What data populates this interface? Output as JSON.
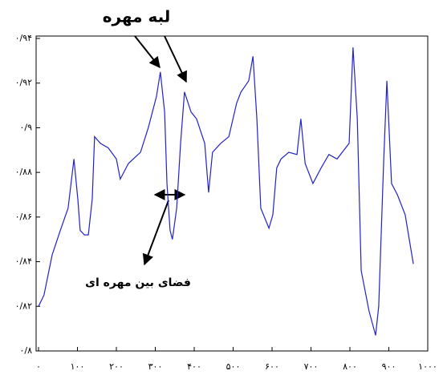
{
  "chart_data": {
    "type": "line",
    "annotations": [
      "لبه مهره",
      "فضای بین مهره ای"
    ],
    "xlim": [
      0,
      1000
    ],
    "xticks": [
      {
        "value": 0,
        "label": "۰"
      },
      {
        "value": 100,
        "label": "۱۰۰"
      },
      {
        "value": 200,
        "label": "۲۰۰"
      },
      {
        "value": 300,
        "label": "۳۰۰"
      },
      {
        "value": 400,
        "label": "۴۰۰"
      },
      {
        "value": 500,
        "label": "۵۰۰"
      },
      {
        "value": 600,
        "label": "۶۰۰"
      },
      {
        "value": 700,
        "label": "۷۰۰"
      },
      {
        "value": 800,
        "label": "۸۰۰"
      },
      {
        "value": 900,
        "label": "۹۰۰"
      },
      {
        "value": 1000,
        "label": "۱۰۰۰"
      }
    ],
    "ylim": [
      0.8,
      0.94
    ],
    "yticks": [
      {
        "value": 0.8,
        "label": "۰/۸"
      },
      {
        "value": 0.82,
        "label": "۰/۸۲"
      },
      {
        "value": 0.84,
        "label": "۰/۸۴"
      },
      {
        "value": 0.86,
        "label": "۰/۸۶"
      },
      {
        "value": 0.88,
        "label": "۰/۸۸"
      },
      {
        "value": 0.9,
        "label": "۰/۹"
      },
      {
        "value": 0.92,
        "label": "۰/۹۲"
      },
      {
        "value": 0.94,
        "label": "۰/۹۴"
      }
    ],
    "series": [
      {
        "color": "#2222cc",
        "x": [
          0,
          14,
          35,
          56,
          76,
          91,
          101,
          107,
          118,
          128,
          138,
          144,
          159,
          179,
          200,
          210,
          231,
          262,
          282,
          303,
          313,
          324,
          330,
          338,
          344,
          355,
          365,
          375,
          392,
          406,
          427,
          437,
          447,
          468,
          489,
          509,
          520,
          540,
          551,
          561,
          571,
          592,
          602,
          612,
          623,
          643,
          664,
          674,
          685,
          705,
          726,
          746,
          767,
          798,
          808,
          819,
          829,
          849,
          866,
          874,
          887,
          895,
          907,
          922,
          942,
          963
        ],
        "values": [
          0.82,
          0.825,
          0.843,
          0.854,
          0.864,
          0.886,
          0.868,
          0.854,
          0.852,
          0.852,
          0.868,
          0.896,
          0.893,
          0.891,
          0.886,
          0.877,
          0.884,
          0.889,
          0.9,
          0.914,
          0.925,
          0.907,
          0.875,
          0.854,
          0.85,
          0.864,
          0.893,
          0.916,
          0.907,
          0.904,
          0.893,
          0.871,
          0.889,
          0.893,
          0.896,
          0.911,
          0.916,
          0.921,
          0.932,
          0.904,
          0.864,
          0.855,
          0.861,
          0.882,
          0.886,
          0.889,
          0.888,
          0.904,
          0.884,
          0.875,
          0.882,
          0.888,
          0.886,
          0.893,
          0.936,
          0.904,
          0.836,
          0.818,
          0.807,
          0.82,
          0.886,
          0.921,
          0.875,
          0.87,
          0.861,
          0.839
        ]
      }
    ]
  }
}
